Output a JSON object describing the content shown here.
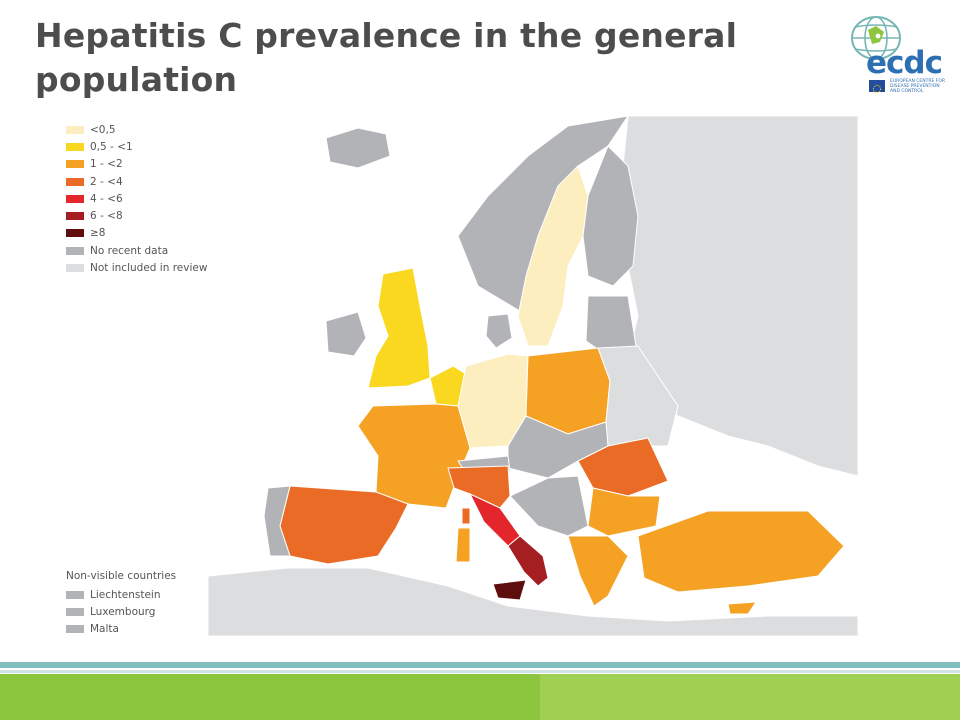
{
  "slide": {
    "title": "Hepatitis C prevalence in the general population"
  },
  "logo": {
    "wordmark": "ecdc",
    "line1": "EUROPEAN CENTRE FOR",
    "line2": "DISEASE PREVENTION",
    "line3": "AND CONTROL"
  },
  "legend": {
    "items": [
      {
        "label": "<0,5",
        "color": "#fdeec0"
      },
      {
        "label": "0,5 - <1",
        "color": "#fad81f"
      },
      {
        "label": "1 - <2",
        "color": "#f5a124"
      },
      {
        "label": "2 - <4",
        "color": "#ea6b26"
      },
      {
        "label": "4 - <6",
        "color": "#e3262b"
      },
      {
        "label": "6 - <8",
        "color": "#a51f22"
      },
      {
        "label": "≥8",
        "color": "#5e0e0d"
      },
      {
        "label": "No recent data",
        "color": "#b2b3b6"
      },
      {
        "label": "Not included in review",
        "color": "#dcdddf"
      }
    ]
  },
  "non_visible": {
    "title": "Non-visible countries",
    "items": [
      {
        "label": "Liechtenstein",
        "color": "#b2b3b6"
      },
      {
        "label": "Luxembourg",
        "color": "#b2b3b6"
      },
      {
        "label": "Malta",
        "color": "#b2b3b6"
      }
    ]
  },
  "colors": {
    "sea": "#ffffff",
    "not_included": "#dcdddf",
    "no_data": "#b2b3b6",
    "border": "#ffffff",
    "title": "#4d4d4d",
    "band_teal": "#7fbfc0",
    "band_green": "#8cc63f"
  }
}
